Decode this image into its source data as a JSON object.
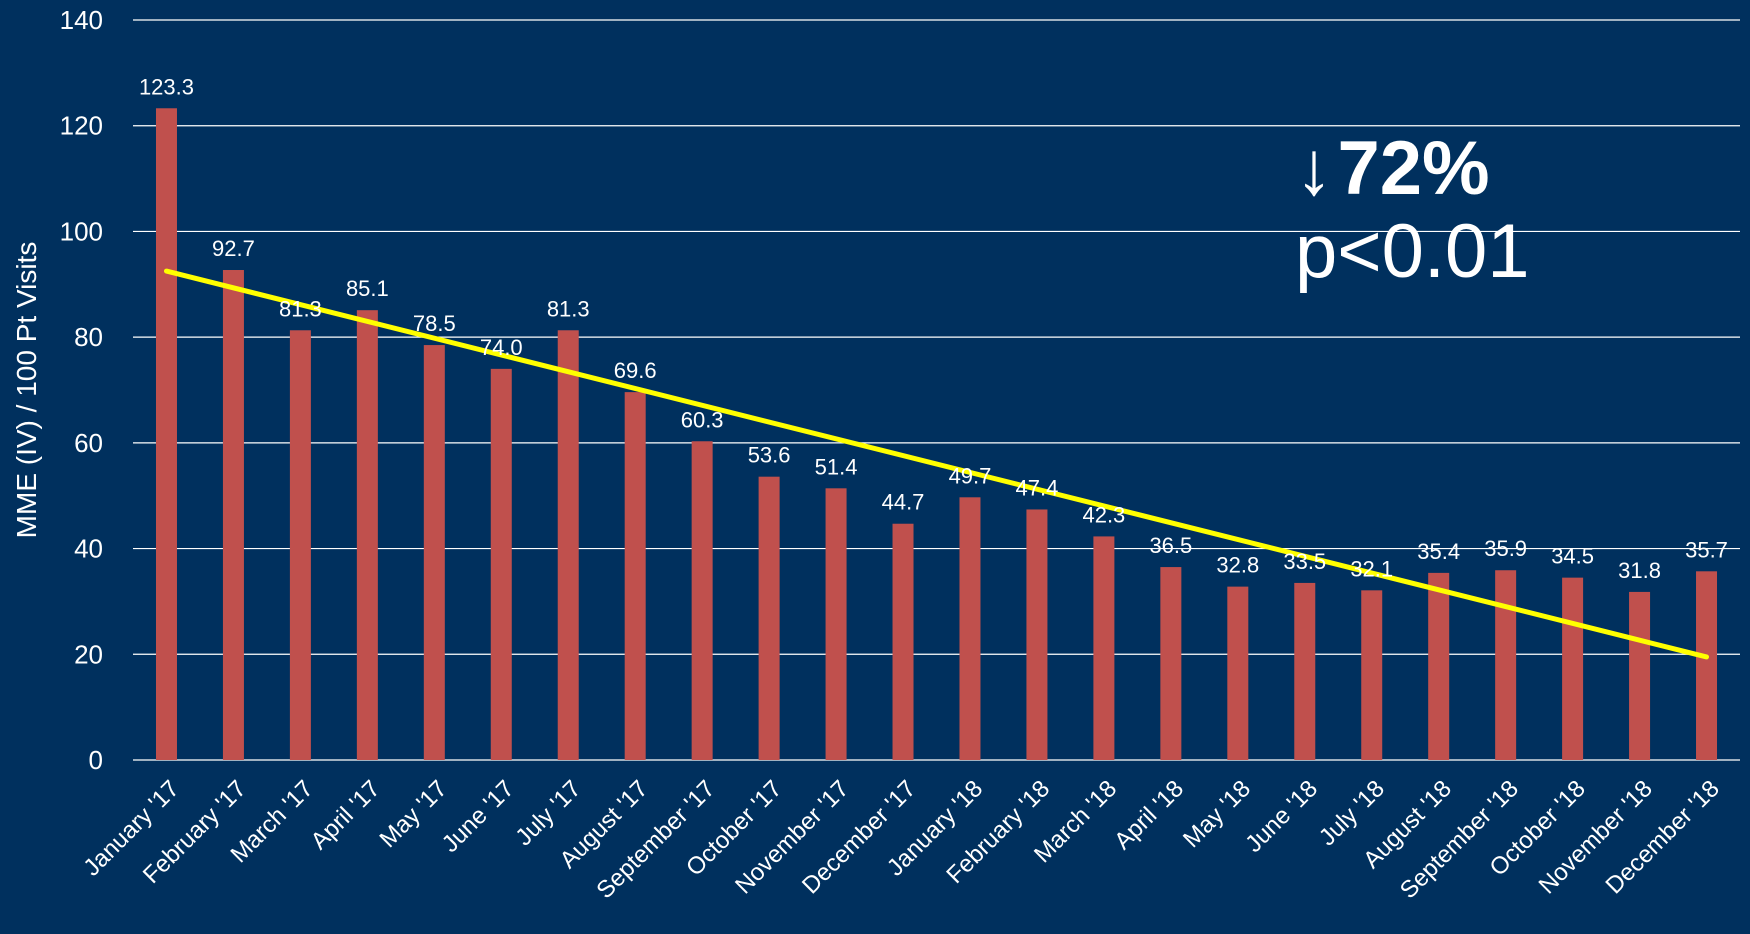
{
  "chart_data": {
    "type": "bar",
    "title": "",
    "xlabel": "",
    "ylabel": "MME (IV) / 100 Pt Visits",
    "ylim": [
      0,
      140
    ],
    "yticks": [
      0,
      20,
      40,
      60,
      80,
      100,
      120,
      140
    ],
    "grid": true,
    "categories": [
      "January '17",
      "February '17",
      "March '17",
      "April '17",
      "May '17",
      "June '17",
      "July '17",
      "August '17",
      "September '17",
      "October '17",
      "November '17",
      "December '17",
      "January '18",
      "February '18",
      "March '18",
      "April '18",
      "May '18",
      "June '18",
      "July '18",
      "August '18",
      "September '18",
      "October '18",
      "November '18",
      "December '18"
    ],
    "values": [
      123.3,
      92.7,
      81.3,
      85.1,
      78.5,
      74.0,
      81.3,
      69.6,
      60.3,
      53.6,
      51.4,
      44.7,
      49.7,
      47.4,
      42.3,
      36.5,
      32.8,
      33.5,
      32.1,
      35.4,
      35.9,
      34.5,
      31.8,
      35.7
    ],
    "value_labels": [
      "123.3",
      "92.7",
      "81.3",
      "85.1",
      "78.5",
      "74.0",
      "81.3",
      "69.6",
      "60.3",
      "53.6",
      "51.4",
      "44.7",
      "49.7",
      "47.4",
      "42.3",
      "36.5",
      "32.8",
      "33.5",
      "32.1",
      "35.4",
      "35.9",
      "34.5",
      "31.8",
      "35.7"
    ],
    "trendline": {
      "start": 92.5,
      "end": 19.5
    },
    "annotation": {
      "arrow": "↓",
      "change": "72%",
      "pvalue": "p<0.01"
    }
  },
  "colors": {
    "background": "#00305e",
    "bar": "#c0504d",
    "trendline": "#ffff00",
    "grid": "#ffffff",
    "text": "#ffffff"
  }
}
